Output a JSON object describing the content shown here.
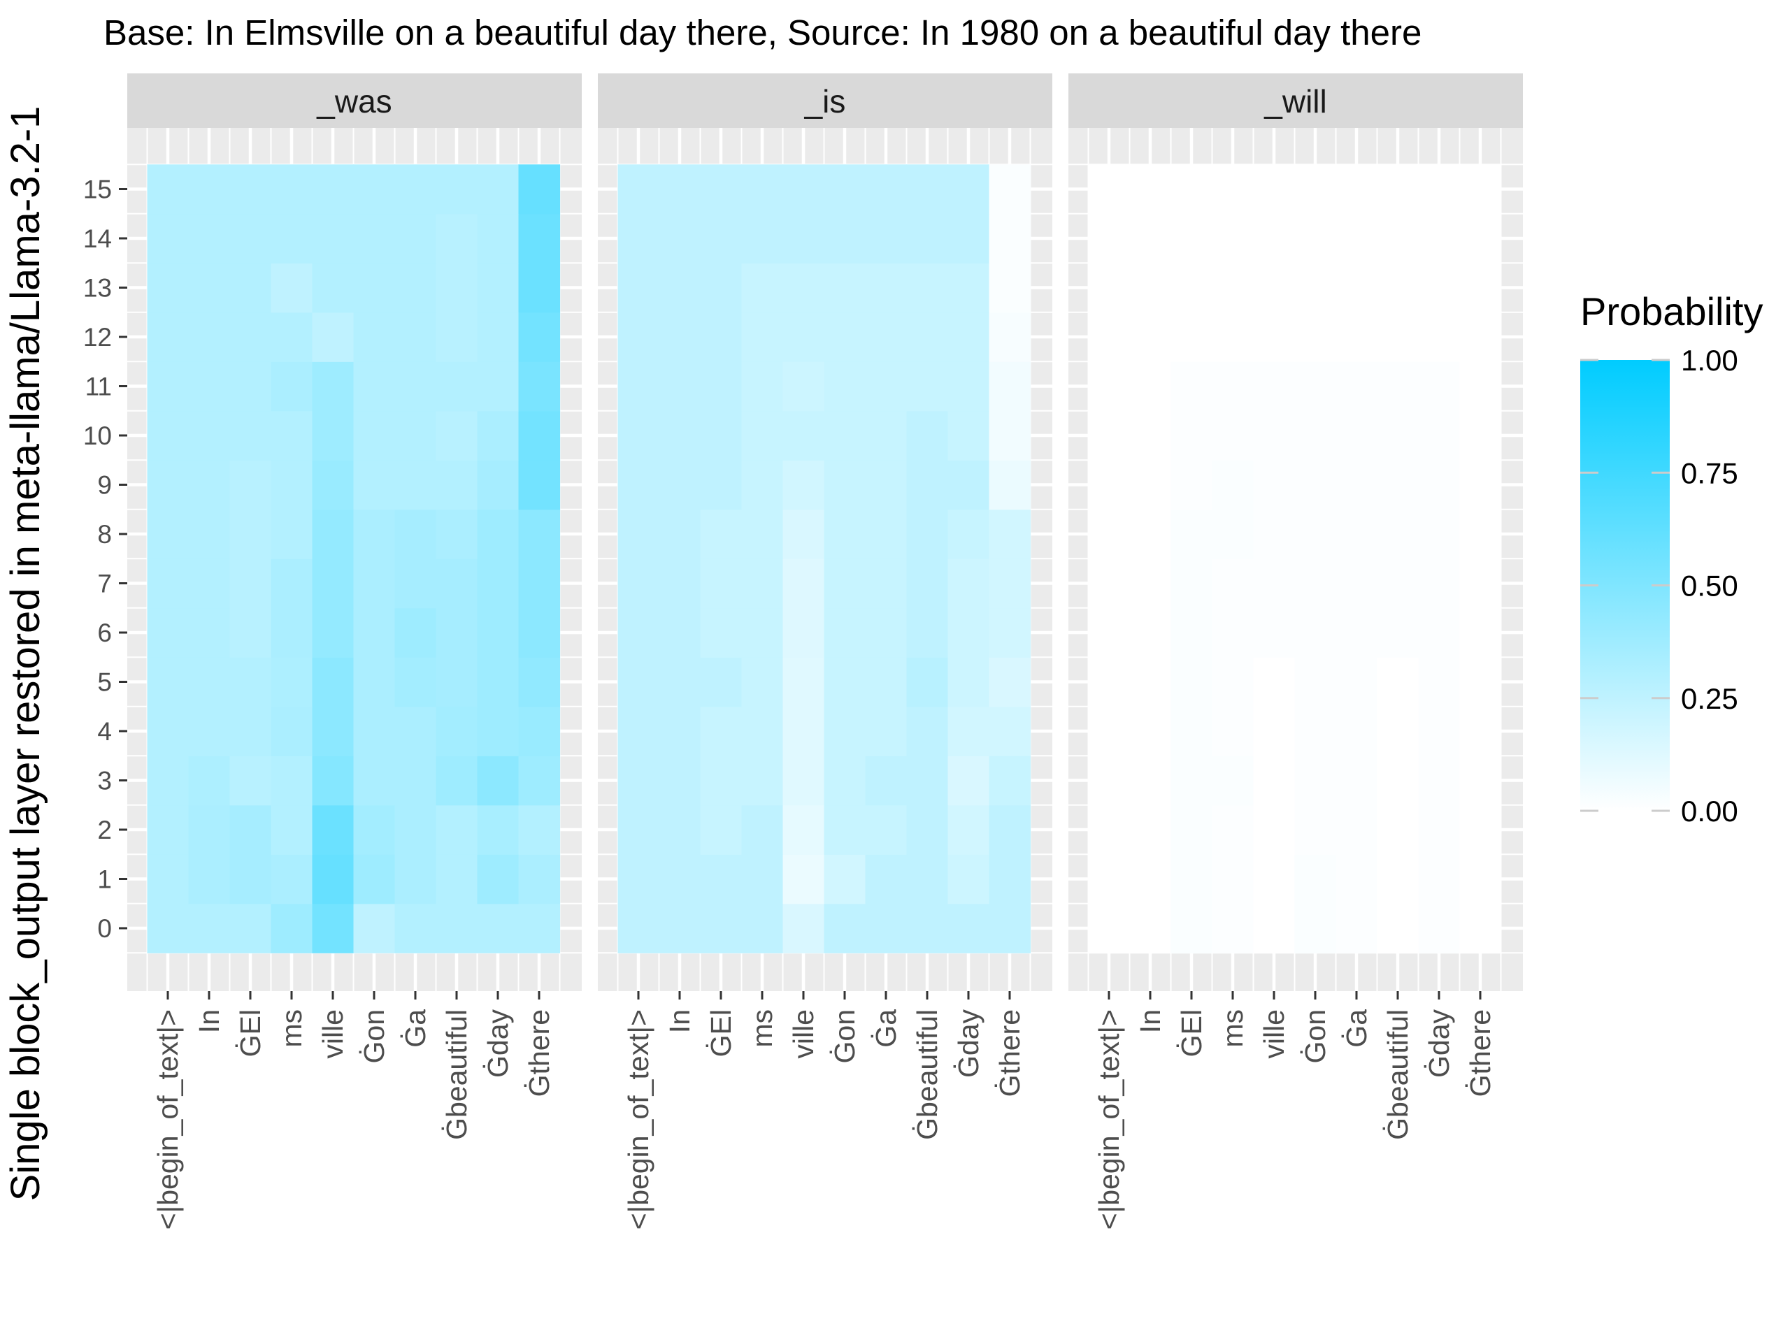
{
  "chart_data": {
    "type": "heatmap",
    "title": "Base: In Elmsville on a beautiful day there, Source: In 1980 on a beautiful day there",
    "ylabel": "Single block_output layer restored in meta-llama/Llama-3.2-1",
    "xlabel": "",
    "legend_title": "Probability",
    "legend_ticks": [
      "1.00",
      "0.75",
      "0.50",
      "0.25",
      "0.00"
    ],
    "legend_position": "right",
    "color_low": "#ffffff",
    "color_high": "#00ccff",
    "value_range": [
      0,
      1
    ],
    "grid": true,
    "x_categories": [
      "<|begin_of_text|>",
      "In",
      "ĠEl",
      "ms",
      "ville",
      "Ġon",
      "Ġa",
      "Ġbeautiful",
      "Ġday",
      "Ġthere"
    ],
    "y_categories": [
      0,
      1,
      2,
      3,
      4,
      5,
      6,
      7,
      8,
      9,
      10,
      11,
      12,
      13,
      14,
      15
    ],
    "panels": [
      {
        "name": "_was",
        "values": [
          [
            0.3,
            0.3,
            0.3,
            0.38,
            0.55,
            0.25,
            0.3,
            0.3,
            0.3,
            0.3
          ],
          [
            0.3,
            0.33,
            0.35,
            0.33,
            0.6,
            0.38,
            0.33,
            0.3,
            0.38,
            0.33
          ],
          [
            0.3,
            0.33,
            0.35,
            0.3,
            0.58,
            0.36,
            0.33,
            0.3,
            0.34,
            0.3
          ],
          [
            0.3,
            0.32,
            0.28,
            0.3,
            0.48,
            0.33,
            0.33,
            0.38,
            0.45,
            0.38
          ],
          [
            0.3,
            0.3,
            0.3,
            0.33,
            0.45,
            0.33,
            0.33,
            0.36,
            0.38,
            0.4
          ],
          [
            0.3,
            0.3,
            0.3,
            0.32,
            0.45,
            0.33,
            0.36,
            0.35,
            0.38,
            0.43
          ],
          [
            0.3,
            0.3,
            0.28,
            0.33,
            0.42,
            0.33,
            0.38,
            0.35,
            0.38,
            0.45
          ],
          [
            0.3,
            0.3,
            0.28,
            0.33,
            0.42,
            0.33,
            0.35,
            0.35,
            0.38,
            0.45
          ],
          [
            0.3,
            0.3,
            0.28,
            0.3,
            0.42,
            0.33,
            0.35,
            0.33,
            0.38,
            0.45
          ],
          [
            0.3,
            0.3,
            0.28,
            0.3,
            0.4,
            0.3,
            0.3,
            0.3,
            0.35,
            0.55
          ],
          [
            0.3,
            0.3,
            0.3,
            0.3,
            0.38,
            0.3,
            0.3,
            0.28,
            0.33,
            0.55
          ],
          [
            0.3,
            0.3,
            0.3,
            0.33,
            0.38,
            0.3,
            0.3,
            0.3,
            0.3,
            0.52
          ],
          [
            0.3,
            0.3,
            0.3,
            0.3,
            0.25,
            0.3,
            0.3,
            0.28,
            0.3,
            0.55
          ],
          [
            0.3,
            0.3,
            0.3,
            0.25,
            0.3,
            0.3,
            0.3,
            0.28,
            0.3,
            0.58
          ],
          [
            0.3,
            0.3,
            0.3,
            0.3,
            0.3,
            0.3,
            0.3,
            0.28,
            0.3,
            0.58
          ],
          [
            0.3,
            0.3,
            0.3,
            0.3,
            0.3,
            0.3,
            0.3,
            0.3,
            0.3,
            0.6
          ]
        ]
      },
      {
        "name": "_is",
        "values": [
          [
            0.25,
            0.25,
            0.25,
            0.25,
            0.15,
            0.25,
            0.25,
            0.25,
            0.25,
            0.25
          ],
          [
            0.25,
            0.25,
            0.25,
            0.25,
            0.08,
            0.18,
            0.25,
            0.25,
            0.2,
            0.25
          ],
          [
            0.25,
            0.25,
            0.22,
            0.25,
            0.1,
            0.22,
            0.22,
            0.25,
            0.18,
            0.25
          ],
          [
            0.25,
            0.25,
            0.22,
            0.22,
            0.12,
            0.22,
            0.25,
            0.25,
            0.15,
            0.22
          ],
          [
            0.25,
            0.25,
            0.22,
            0.22,
            0.12,
            0.22,
            0.22,
            0.25,
            0.18,
            0.18
          ],
          [
            0.25,
            0.25,
            0.25,
            0.22,
            0.12,
            0.22,
            0.22,
            0.28,
            0.2,
            0.15
          ],
          [
            0.25,
            0.25,
            0.22,
            0.22,
            0.13,
            0.22,
            0.22,
            0.25,
            0.2,
            0.18
          ],
          [
            0.25,
            0.25,
            0.22,
            0.22,
            0.13,
            0.22,
            0.22,
            0.25,
            0.2,
            0.18
          ],
          [
            0.25,
            0.25,
            0.22,
            0.22,
            0.15,
            0.22,
            0.22,
            0.25,
            0.22,
            0.18
          ],
          [
            0.25,
            0.25,
            0.25,
            0.22,
            0.18,
            0.22,
            0.22,
            0.25,
            0.25,
            0.08
          ],
          [
            0.25,
            0.25,
            0.25,
            0.22,
            0.22,
            0.22,
            0.22,
            0.25,
            0.22,
            0.05
          ],
          [
            0.25,
            0.25,
            0.25,
            0.22,
            0.2,
            0.22,
            0.22,
            0.22,
            0.22,
            0.05
          ],
          [
            0.25,
            0.25,
            0.25,
            0.22,
            0.22,
            0.22,
            0.22,
            0.22,
            0.22,
            0.03
          ],
          [
            0.25,
            0.25,
            0.25,
            0.22,
            0.22,
            0.22,
            0.22,
            0.22,
            0.22,
            0.02
          ],
          [
            0.25,
            0.25,
            0.25,
            0.25,
            0.25,
            0.25,
            0.25,
            0.25,
            0.25,
            0.02
          ],
          [
            0.25,
            0.25,
            0.25,
            0.25,
            0.25,
            0.25,
            0.25,
            0.25,
            0.25,
            0.02
          ]
        ]
      },
      {
        "name": "_will",
        "values": [
          [
            0.0,
            0.0,
            0.02,
            0.01,
            0.0,
            0.02,
            0.01,
            0.0,
            0.01,
            0.0
          ],
          [
            0.0,
            0.0,
            0.02,
            0.01,
            0.0,
            0.02,
            0.01,
            0.0,
            0.01,
            0.0
          ],
          [
            0.0,
            0.0,
            0.02,
            0.01,
            0.0,
            0.01,
            0.01,
            0.0,
            0.01,
            0.0
          ],
          [
            0.0,
            0.0,
            0.02,
            0.02,
            0.0,
            0.01,
            0.01,
            0.0,
            0.01,
            0.0
          ],
          [
            0.0,
            0.0,
            0.02,
            0.01,
            0.0,
            0.01,
            0.01,
            0.0,
            0.01,
            0.0
          ],
          [
            0.0,
            0.0,
            0.02,
            0.01,
            0.0,
            0.01,
            0.01,
            0.0,
            0.01,
            0.0
          ],
          [
            0.0,
            0.0,
            0.02,
            0.01,
            0.01,
            0.01,
            0.01,
            0.01,
            0.01,
            0.0
          ],
          [
            0.0,
            0.0,
            0.02,
            0.01,
            0.01,
            0.01,
            0.01,
            0.01,
            0.01,
            0.0
          ],
          [
            0.0,
            0.0,
            0.02,
            0.02,
            0.01,
            0.01,
            0.01,
            0.01,
            0.01,
            0.0
          ],
          [
            0.0,
            0.0,
            0.01,
            0.02,
            0.01,
            0.01,
            0.01,
            0.01,
            0.01,
            0.0
          ],
          [
            0.0,
            0.0,
            0.01,
            0.01,
            0.01,
            0.01,
            0.01,
            0.01,
            0.01,
            0.0
          ],
          [
            0.0,
            0.0,
            0.01,
            0.01,
            0.01,
            0.01,
            0.01,
            0.01,
            0.01,
            0.0
          ],
          [
            0.0,
            0.0,
            0.0,
            0.0,
            0.0,
            0.0,
            0.0,
            0.0,
            0.0,
            0.0
          ],
          [
            0.0,
            0.0,
            0.0,
            0.0,
            0.0,
            0.0,
            0.0,
            0.0,
            0.0,
            0.0
          ],
          [
            0.0,
            0.0,
            0.0,
            0.0,
            0.0,
            0.0,
            0.0,
            0.0,
            0.0,
            0.0
          ],
          [
            0.0,
            0.0,
            0.0,
            0.0,
            0.0,
            0.0,
            0.0,
            0.0,
            0.0,
            0.0
          ]
        ]
      }
    ]
  }
}
